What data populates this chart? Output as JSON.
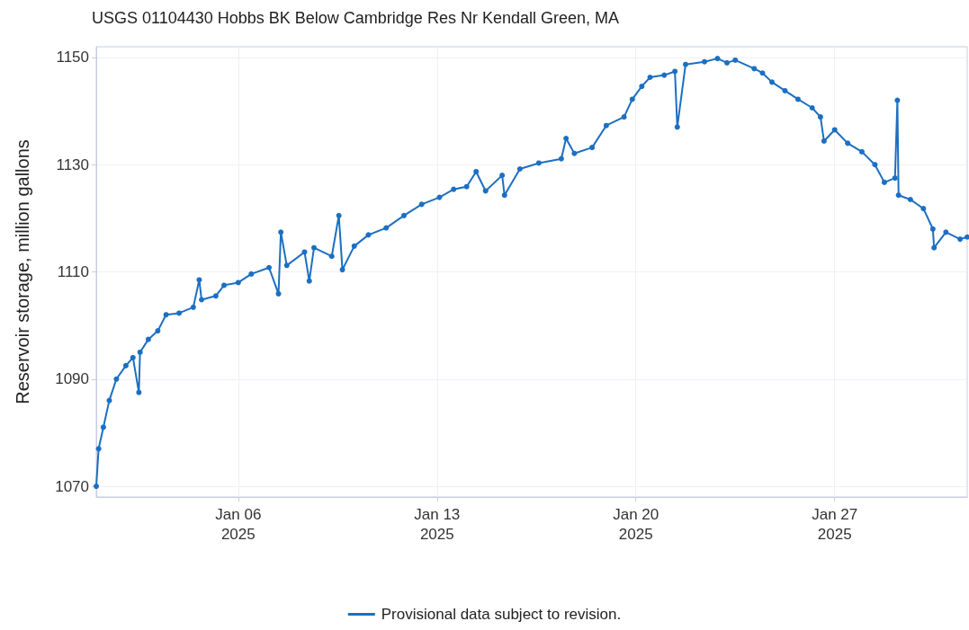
{
  "chart_data": {
    "type": "line",
    "title": "USGS 01104430 Hobbs BK Below Cambridge Res Nr Kendall Green, MA",
    "ylabel": "Reservoir storage, million gallons",
    "x": [
      "2025-01-01T00:00",
      "2025-01-01T02:00",
      "2025-01-01T06:00",
      "2025-01-01T11:00",
      "2025-01-01T17:00",
      "2025-01-02T01:00",
      "2025-01-02T07:00",
      "2025-01-02T12:00",
      "2025-01-02T13:00",
      "2025-01-02T20:00",
      "2025-01-03T04:00",
      "2025-01-03T11:00",
      "2025-01-03T22:00",
      "2025-01-04T10:00",
      "2025-01-04T15:00",
      "2025-01-04T17:00",
      "2025-01-05T05:00",
      "2025-01-05T12:00",
      "2025-01-06T00:00",
      "2025-01-06T11:00",
      "2025-01-07T02:00",
      "2025-01-07T10:00",
      "2025-01-07T12:00",
      "2025-01-07T17:00",
      "2025-01-08T08:00",
      "2025-01-08T12:00",
      "2025-01-08T16:00",
      "2025-01-09T07:00",
      "2025-01-09T13:00",
      "2025-01-09T16:00",
      "2025-01-10T02:00",
      "2025-01-10T14:00",
      "2025-01-11T05:00",
      "2025-01-11T20:00",
      "2025-01-12T11:00",
      "2025-01-13T02:00",
      "2025-01-13T14:00",
      "2025-01-14T01:00",
      "2025-01-14T09:00",
      "2025-01-14T17:00",
      "2025-01-15T07:00",
      "2025-01-15T09:00",
      "2025-01-15T22:00",
      "2025-01-16T14:00",
      "2025-01-17T09:00",
      "2025-01-17T13:00",
      "2025-01-17T20:00",
      "2025-01-18T11:00",
      "2025-01-18T23:00",
      "2025-01-19T14:00",
      "2025-01-19T21:00",
      "2025-01-20T05:00",
      "2025-01-20T12:00",
      "2025-01-21T00:00",
      "2025-01-21T09:00",
      "2025-01-21T11:00",
      "2025-01-21T18:00",
      "2025-01-22T10:00",
      "2025-01-22T21:00",
      "2025-01-23T05:00",
      "2025-01-23T12:00",
      "2025-01-24T04:00",
      "2025-01-24T11:00",
      "2025-01-24T19:00",
      "2025-01-25T06:00",
      "2025-01-25T17:00",
      "2025-01-26T05:00",
      "2025-01-26T12:00",
      "2025-01-26T15:00",
      "2025-01-27T00:00",
      "2025-01-27T11:00",
      "2025-01-27T23:00",
      "2025-01-28T10:00",
      "2025-01-28T18:00",
      "2025-01-29T03:00",
      "2025-01-29T05:00",
      "2025-01-29T06:00",
      "2025-01-29T16:00",
      "2025-01-30T03:00",
      "2025-01-30T11:00",
      "2025-01-30T12:00",
      "2025-01-30T22:00",
      "2025-01-31T10:00",
      "2025-01-31T16:00"
    ],
    "series": [
      {
        "name": "Provisional data subject to revision.",
        "color": "#1c6fc2",
        "values": [
          1070,
          1077,
          1081,
          1086,
          1090,
          1092.5,
          1094,
          1087.5,
          1095,
          1097.4,
          1099,
          1102,
          1102.3,
          1103.4,
          1108.5,
          1104.8,
          1105.5,
          1107.5,
          1108,
          1109.6,
          1110.8,
          1105.9,
          1117.4,
          1111.2,
          1113.7,
          1108.3,
          1114.5,
          1112.9,
          1120.5,
          1110.4,
          1114.8,
          1116.9,
          1118.2,
          1120.5,
          1122.6,
          1123.9,
          1125.4,
          1125.9,
          1128.7,
          1125.1,
          1128,
          1124.3,
          1129.2,
          1130.3,
          1131.1,
          1134.9,
          1132.1,
          1133.2,
          1137.3,
          1138.9,
          1142.2,
          1144.6,
          1146.3,
          1146.7,
          1147.4,
          1137,
          1148.7,
          1149.2,
          1149.8,
          1149,
          1149.5,
          1147.9,
          1147.1,
          1145.4,
          1143.8,
          1142.2,
          1140.6,
          1138.9,
          1134.4,
          1136.5,
          1134,
          1132.4,
          1130,
          1126.7,
          1127.5,
          1142,
          1124.3,
          1123.5,
          1121.8,
          1118,
          1114.5,
          1117.4,
          1116.1,
          1116.5
        ]
      }
    ],
    "xlim": [
      "2025-01-01T00:00",
      "2025-01-31T16:00"
    ],
    "xticks": [
      {
        "value": "2025-01-06",
        "label": "Jan 06\n2025"
      },
      {
        "value": "2025-01-13",
        "label": "Jan 13\n2025"
      },
      {
        "value": "2025-01-20",
        "label": "Jan 20\n2025"
      },
      {
        "value": "2025-01-27",
        "label": "Jan 27\n2025"
      }
    ],
    "ylim": [
      1068,
      1152
    ],
    "yticks": [
      1070,
      1090,
      1110,
      1130,
      1150
    ],
    "grid": true,
    "legend": "bottom",
    "marker": "circle",
    "line_style": "solid"
  }
}
